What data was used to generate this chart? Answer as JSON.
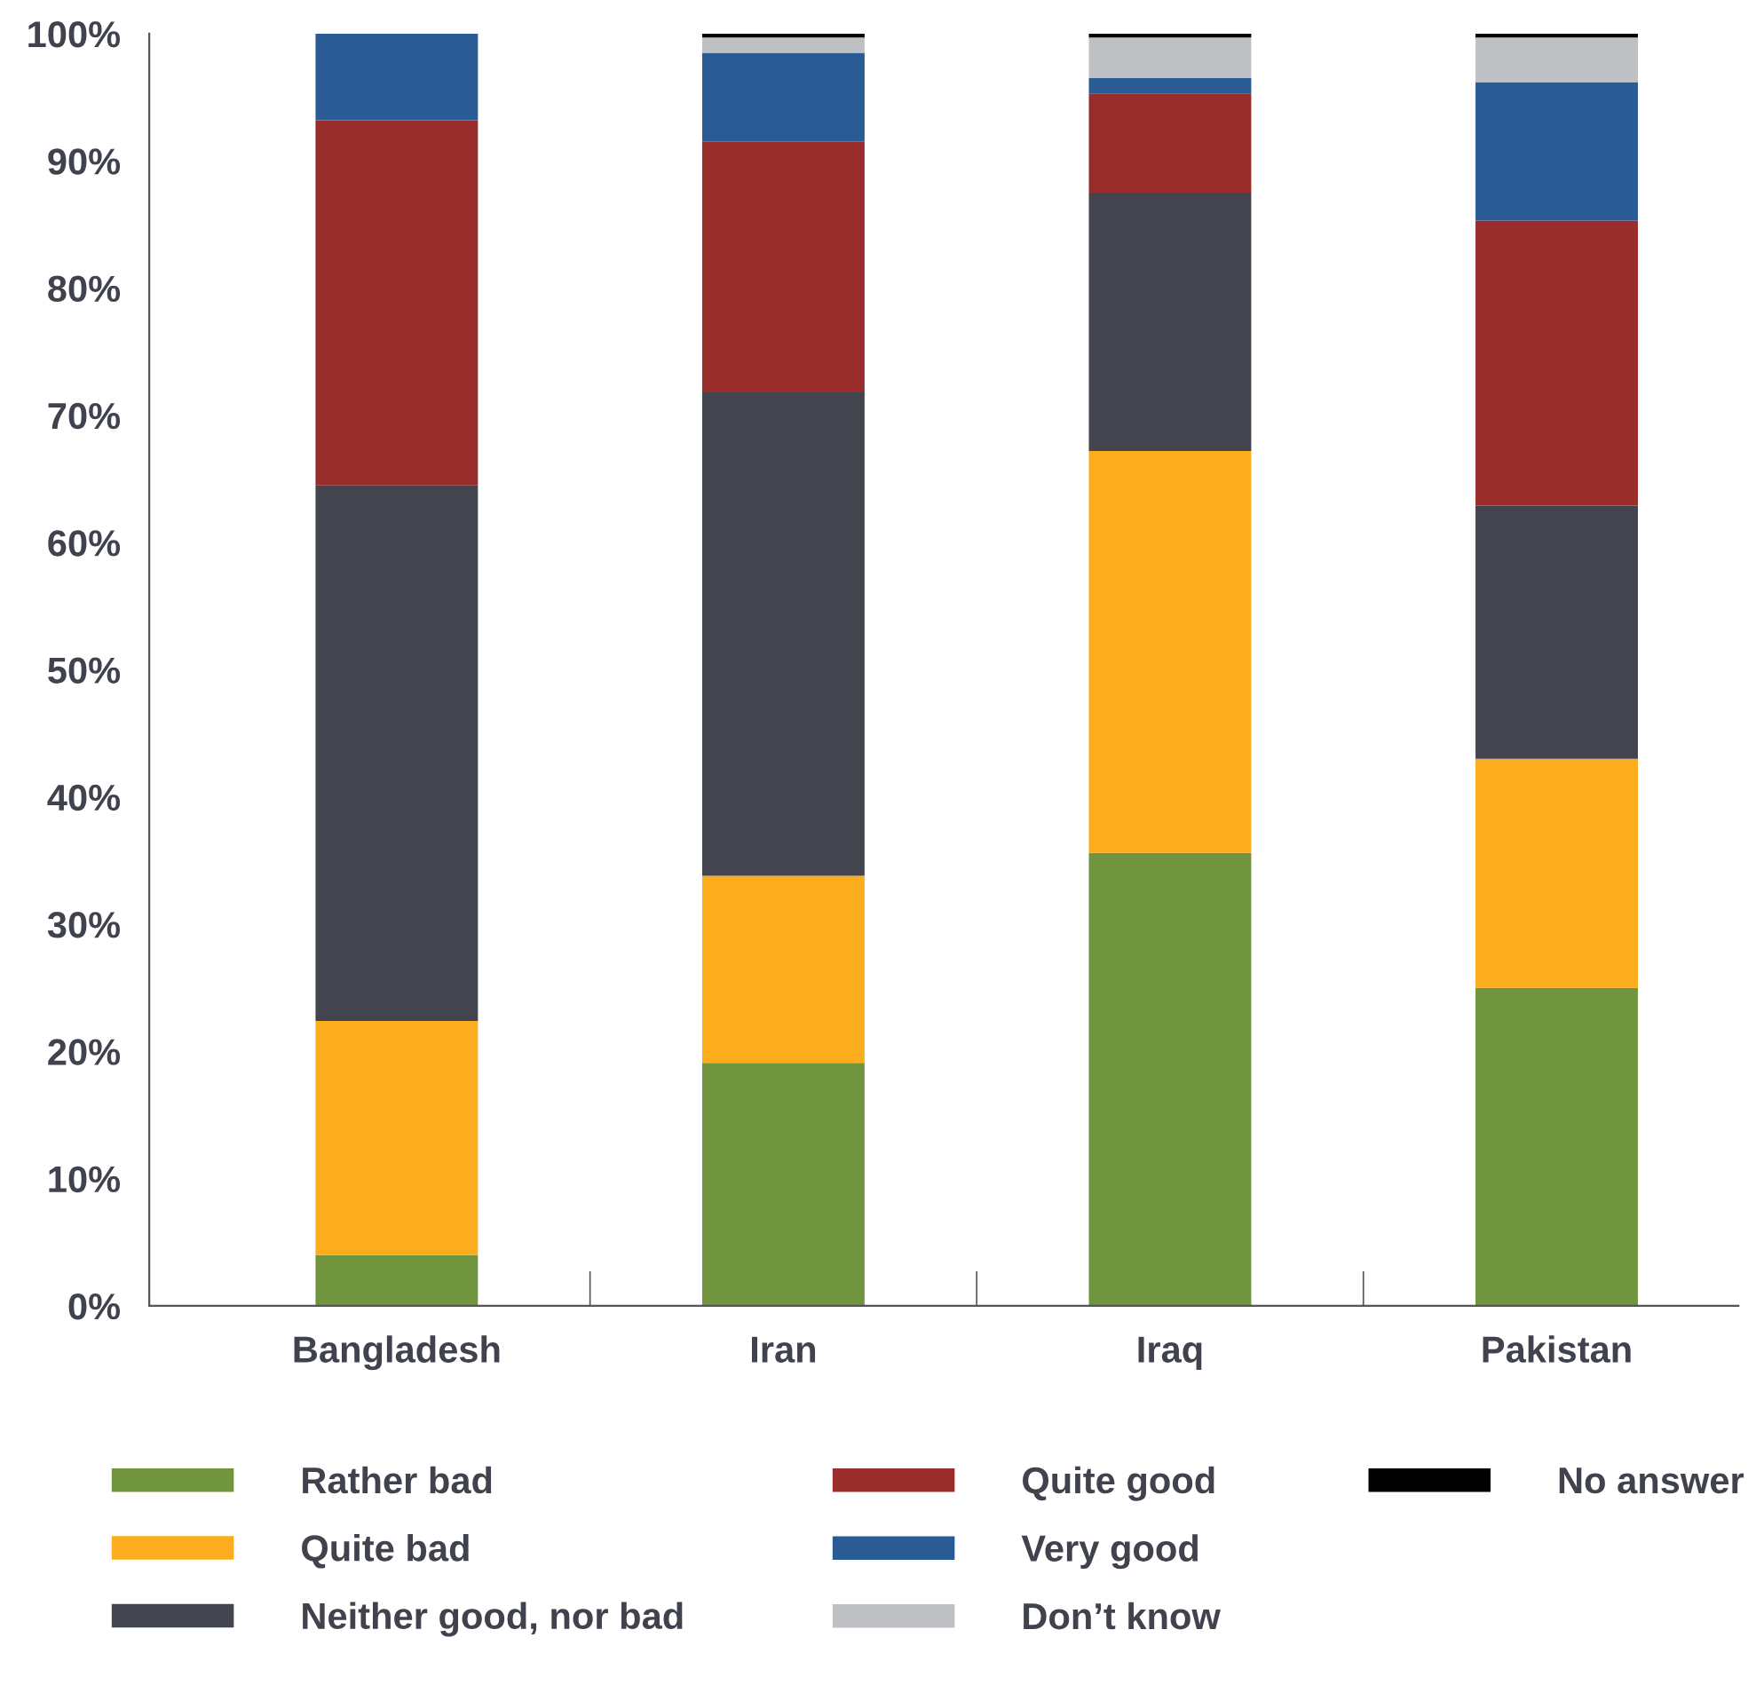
{
  "chart_data": {
    "type": "bar",
    "stacked": true,
    "categories": [
      "Bangladesh",
      "Iran",
      "Iraq",
      "Pakistan"
    ],
    "series": [
      {
        "name": "Rather bad",
        "color": "#71953f",
        "values": [
          4.0,
          19.1,
          35.6,
          25.0
        ]
      },
      {
        "name": "Quite bad",
        "color": "#fbad1e",
        "values": [
          18.4,
          14.7,
          31.6,
          18.0
        ]
      },
      {
        "name": "Neither good, nor bad",
        "color": "#42444e",
        "values": [
          42.1,
          38.0,
          20.3,
          19.9
        ]
      },
      {
        "name": "Quite good",
        "color": "#992d2c",
        "values": [
          28.7,
          19.7,
          7.8,
          22.4
        ]
      },
      {
        "name": "Very good",
        "color": "#2a5b95",
        "values": [
          6.8,
          7.0,
          1.2,
          10.9
        ]
      },
      {
        "name": "Don’t know",
        "color": "#bfc0c3",
        "values": [
          0,
          1.2,
          3.2,
          3.5
        ]
      },
      {
        "name": "No answer",
        "color": "#000000",
        "values": [
          0,
          0.3,
          0.3,
          0.3
        ]
      }
    ],
    "ylim": [
      0,
      100
    ],
    "yticks": [
      {
        "value": 0,
        "label": "0%"
      },
      {
        "value": 10,
        "label": "10%"
      },
      {
        "value": 20,
        "label": "20%"
      },
      {
        "value": 30,
        "label": "30%"
      },
      {
        "value": 40,
        "label": "40%"
      },
      {
        "value": 50,
        "label": "50%"
      },
      {
        "value": 60,
        "label": "60%"
      },
      {
        "value": 70,
        "label": "70%"
      },
      {
        "value": 80,
        "label": "80%"
      },
      {
        "value": 90,
        "label": "90%"
      },
      {
        "value": 100,
        "label": "100%"
      }
    ],
    "grid": false,
    "legend": "bottom"
  }
}
